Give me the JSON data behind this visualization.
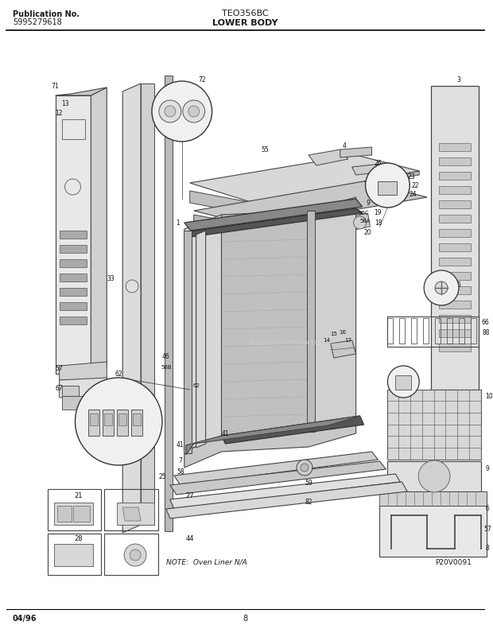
{
  "bg_color": "#ffffff",
  "page_width": 6.2,
  "page_height": 7.91,
  "dpi": 100,
  "header": {
    "pub_label": "Publication No.",
    "pub_number": "5995279618",
    "model": "TEO356BC",
    "section": "LOWER BODY"
  },
  "footer": {
    "date": "04/96",
    "page": "8",
    "watermark": "P20V0091",
    "note": "NOTE:  Oven Liner N/A"
  },
  "text_color": "#1a1a1a",
  "border_color": "#000000",
  "line_color": "#333333",
  "watermark_color": "#cccccc",
  "diagram_bg": "#f5f5f0"
}
